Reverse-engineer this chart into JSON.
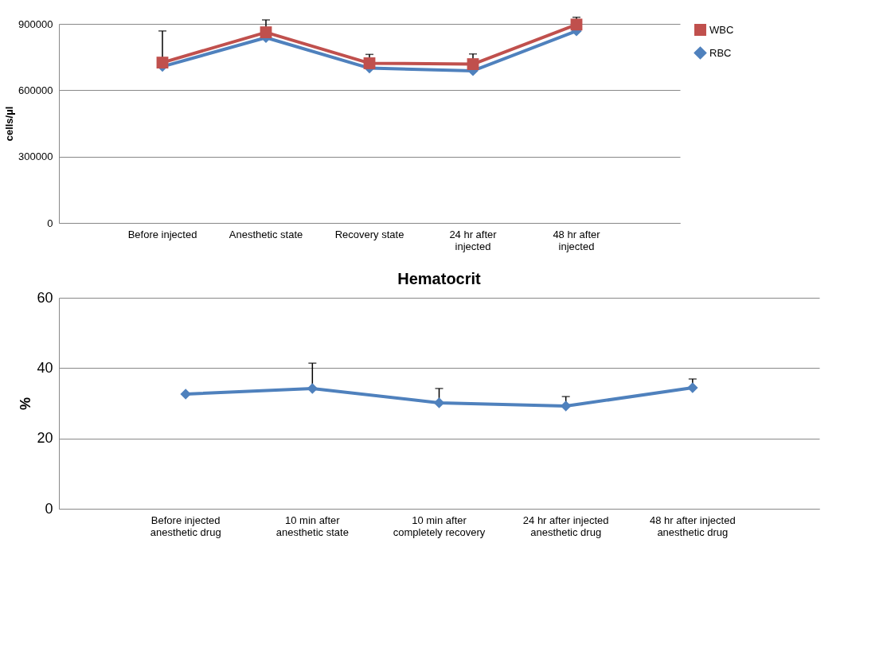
{
  "chart_data": [
    {
      "type": "line",
      "ylabel": "cells/µl",
      "categories": [
        "Before injected",
        "Anesthetic state",
        "Recovery state",
        "24 hr after injected",
        "48 hr after injected"
      ],
      "ylim": [
        0,
        900000
      ],
      "yticks": [
        0,
        300000,
        600000,
        900000
      ],
      "grid": "y",
      "legend": "right",
      "series": [
        {
          "name": "WBC",
          "color": "#c0504d",
          "marker": "square",
          "values": [
            725000,
            862000,
            722000,
            718000,
            897000
          ],
          "errors": [
            [
              725000,
              868000
            ],
            [
              862000,
              918000
            ],
            [
              722000,
              762000
            ],
            [
              718000,
              764000
            ],
            [
              897000,
              930000
            ]
          ]
        },
        {
          "name": "RBC",
          "color": "#4f81bd",
          "marker": "diamond",
          "values": [
            707000,
            838000,
            700000,
            688000,
            868000
          ]
        }
      ]
    },
    {
      "type": "line",
      "title": "Hematocrit",
      "ylabel": "%",
      "categories": [
        "Before injected anesthetic drug",
        "10 min after anesthetic state",
        "10 min after completely recovery",
        "24 hr after injected anesthetic drug",
        "48 hr after injected anesthetic drug"
      ],
      "ylim": [
        0,
        60
      ],
      "yticks": [
        0,
        20,
        40,
        60
      ],
      "grid": "y",
      "series": [
        {
          "color": "#4f81bd",
          "marker": "diamond",
          "values": [
            32.6,
            34.2,
            30.1,
            29.2,
            34.4
          ],
          "errors": [
            null,
            [
              34.2,
              41.4
            ],
            [
              30.1,
              34.2
            ],
            [
              29.2,
              31.9
            ],
            [
              34.4,
              36.9
            ]
          ]
        }
      ]
    }
  ]
}
